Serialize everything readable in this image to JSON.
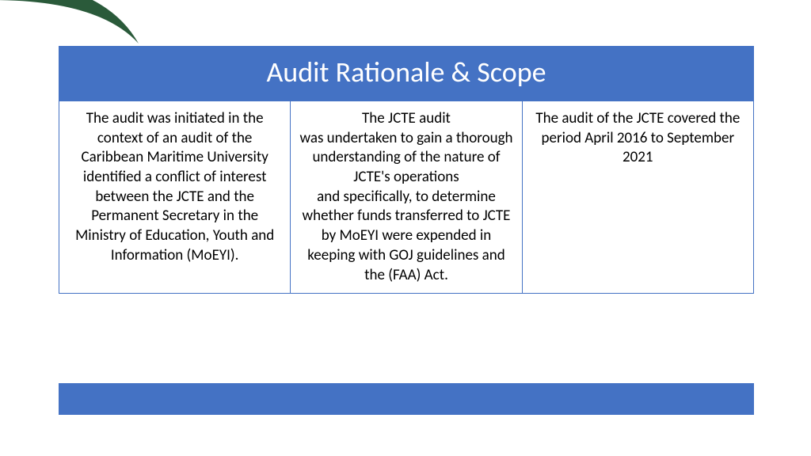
{
  "slide": {
    "title": "Audit Rationale & Scope",
    "columns": [
      "The audit was initiated in the context of an audit of the Caribbean Maritime University\nidentified a conflict of interest between the JCTE and the Permanent Secretary in the Ministry of Education, Youth and Information (MoEYI).",
      "The JCTE audit\nwas undertaken to gain a thorough understanding of the nature of JCTE's operations\nand specifically, to determine whether funds transferred to JCTE\nby  MoEYI were expended in keeping with GOJ guidelines and the (FAA) Act.",
      "The audit of the JCTE covered the period April 2016 to September 2021"
    ]
  },
  "style": {
    "header_bg": "#4472c4",
    "header_text_color": "#ffffff",
    "border_color": "#4472c4",
    "body_text_color": "#000000",
    "swoosh_color": "#2a5a3a",
    "page_bg": "#ffffff",
    "title_fontsize": 36,
    "body_fontsize": 19
  }
}
